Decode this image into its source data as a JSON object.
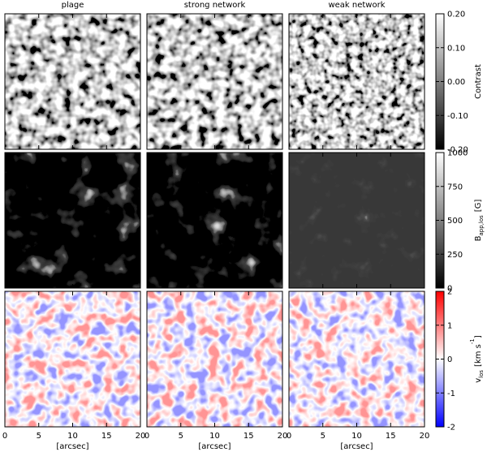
{
  "chart_data": {
    "type": "image-grid",
    "columns": [
      "plage",
      "strong network",
      "weak network"
    ],
    "x_label": "[arcsec]",
    "xlim": [
      0,
      20
    ],
    "xticks": [
      0,
      5,
      10,
      15,
      20
    ],
    "rows": [
      {
        "colorbar": {
          "label": [
            {
              "text": "Contrast"
            }
          ],
          "colormap": [
            "#000000",
            "#ffffff"
          ],
          "clim": [
            -0.2,
            0.2
          ],
          "ticks": [
            {
              "value": -0.2,
              "label": "-0.20"
            },
            {
              "value": -0.1,
              "label": "-0.10"
            },
            {
              "value": 0,
              "label": "0.00"
            },
            {
              "value": 0.1,
              "label": "0.10"
            },
            {
              "value": 0.2,
              "label": "0.20"
            }
          ]
        }
      },
      {
        "colorbar": {
          "label": [
            {
              "text": "B"
            },
            {
              "text": "app,los",
              "sub": true
            },
            {
              "text": "[G]"
            }
          ],
          "colormap": [
            "#000000",
            "#ffffff"
          ],
          "clim": [
            0,
            1000
          ],
          "ticks": [
            0,
            250,
            500,
            750,
            1000
          ]
        }
      },
      {
        "colorbar": {
          "label": [
            {
              "text": "v"
            },
            {
              "text": "los",
              "sub": true
            },
            {
              "text": "[km s"
            },
            {
              "text": "-1",
              "sup": true
            },
            {
              "text": "]"
            }
          ],
          "colormap": [
            "#0000ff",
            "#ffffff",
            "#ff0000"
          ],
          "clim": [
            -2,
            2
          ],
          "ticks": [
            -2,
            -1,
            0,
            1,
            2
          ]
        }
      }
    ]
  }
}
